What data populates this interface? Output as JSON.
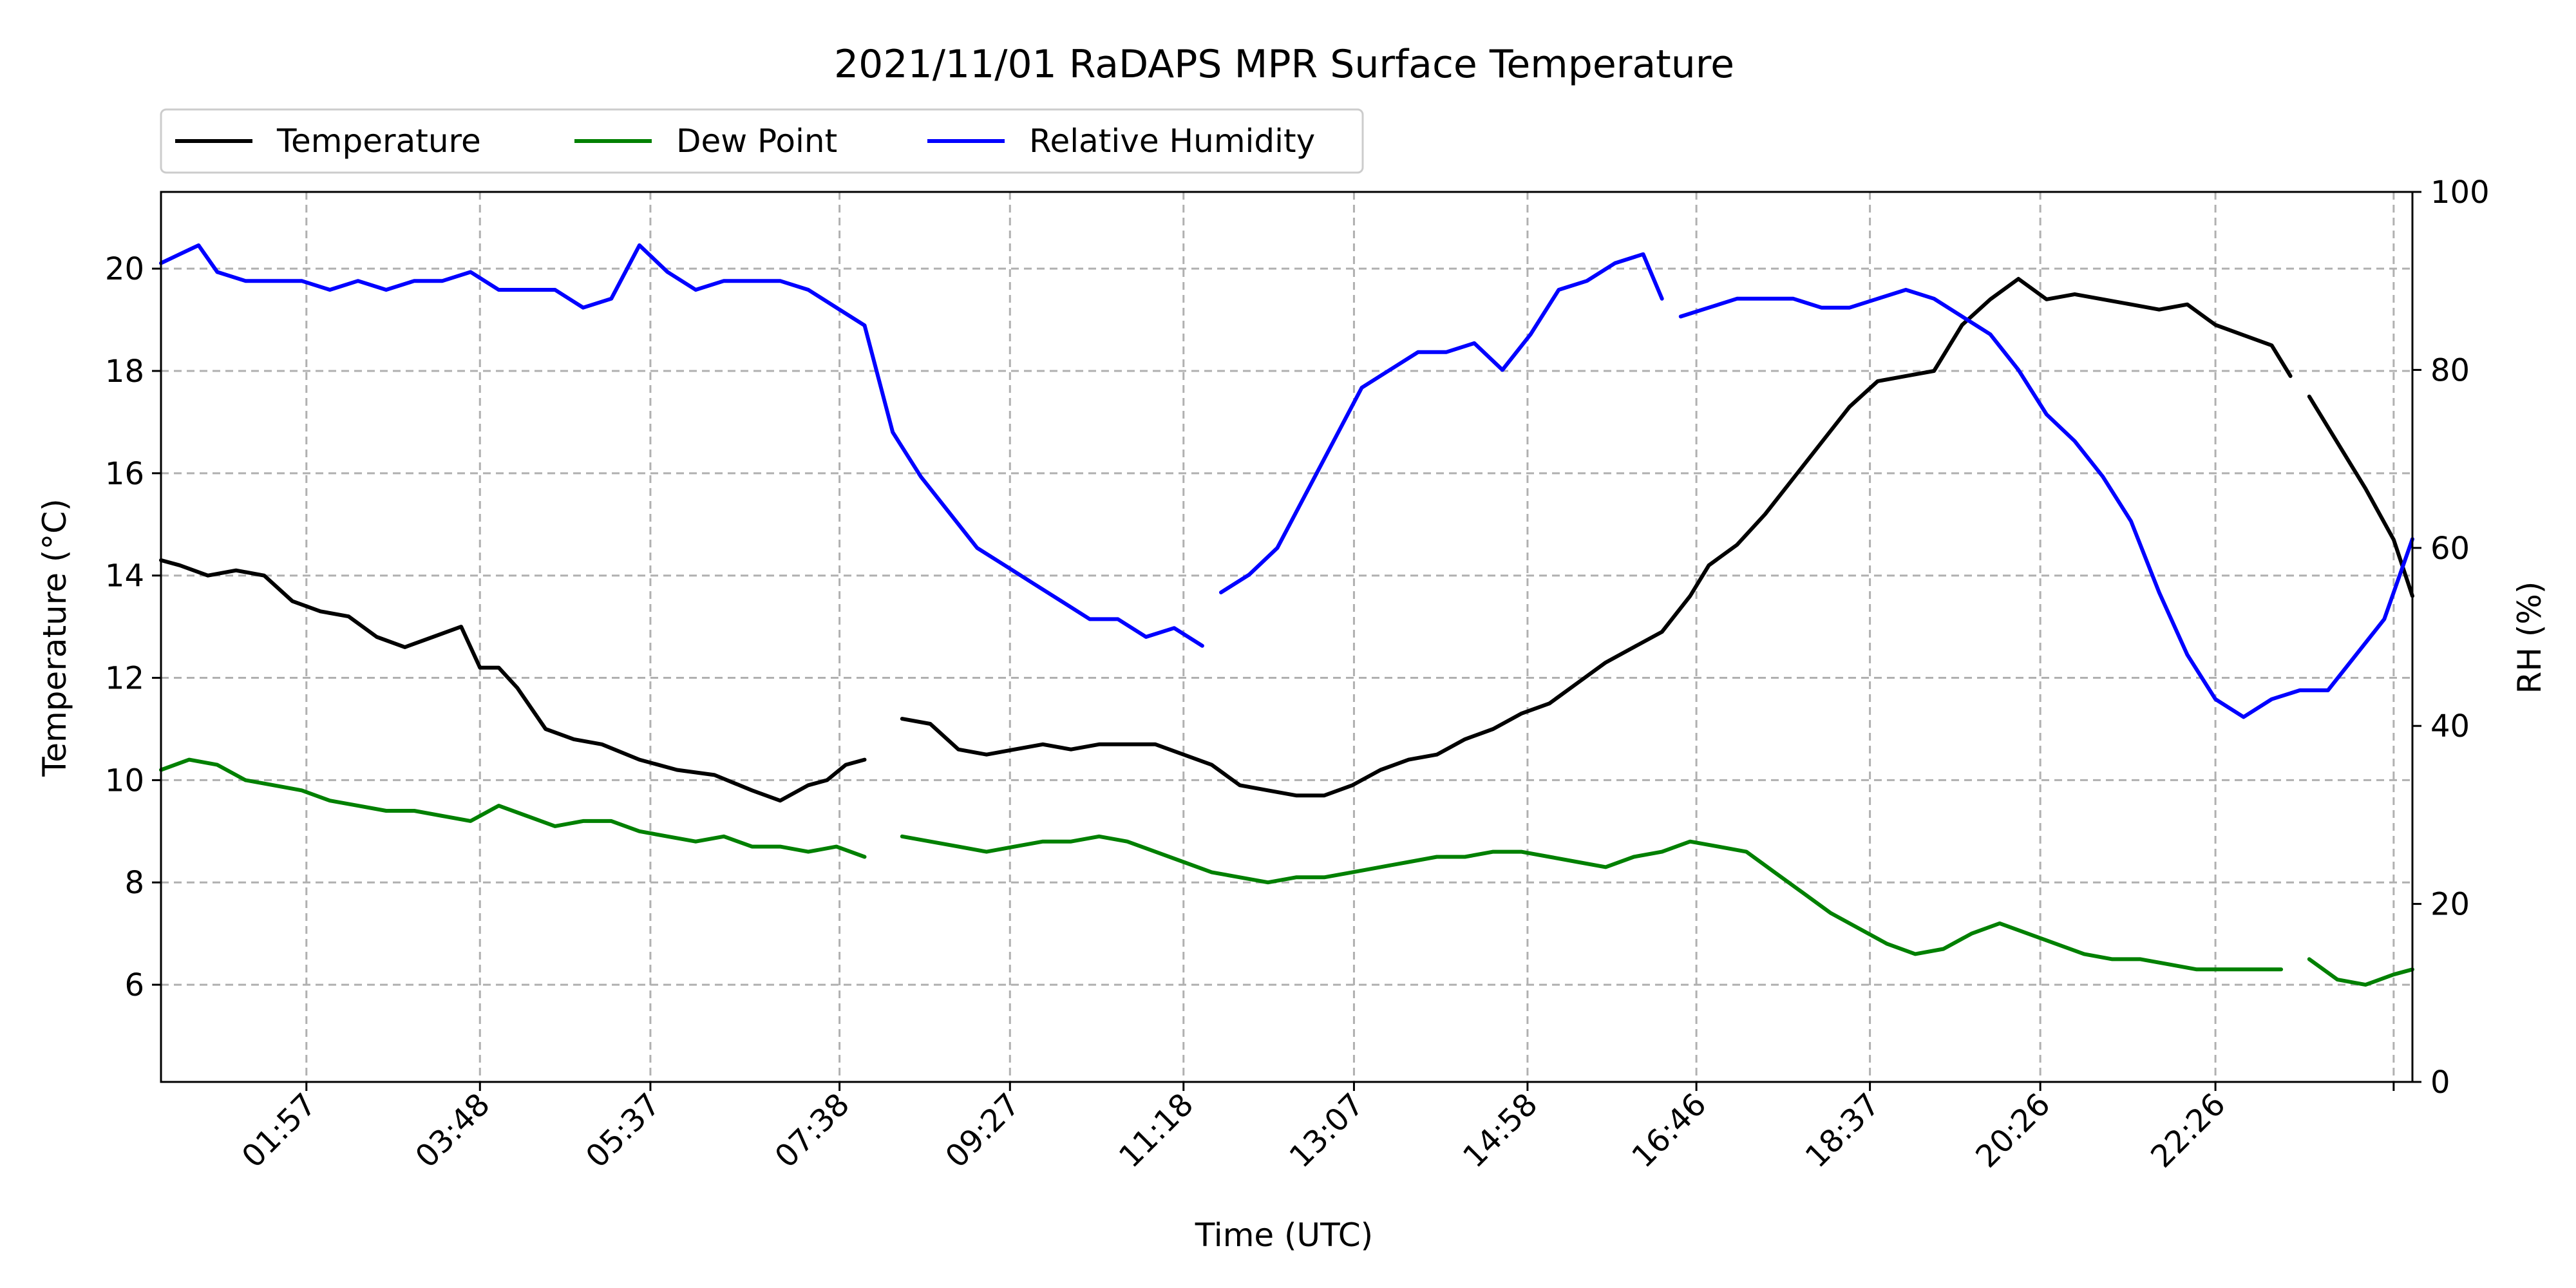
{
  "chart_data": {
    "type": "line",
    "title": "2021/11/01 RaDAPS MPR Surface Temperature",
    "xlabel": "Time (UTC)",
    "ylabel_left": "Temperature ($^\\circ$C)",
    "ylabel_left_display": "Temperature (°C)",
    "ylabel_right": "RH (%)",
    "xlim_hours": [
      0.4,
      24.4
    ],
    "ylim_left": [
      4.1,
      21.5
    ],
    "ylim_right": [
      0,
      100
    ],
    "yticks_left": [
      6,
      8,
      10,
      12,
      14,
      16,
      18,
      20
    ],
    "yticks_right": [
      0,
      20,
      40,
      60,
      80,
      100
    ],
    "xticks": [
      {
        "label": "01:57",
        "hour": 1.95
      },
      {
        "label": "03:48",
        "hour": 3.8
      },
      {
        "label": "05:37",
        "hour": 5.617
      },
      {
        "label": "07:38",
        "hour": 7.633
      },
      {
        "label": "09:27",
        "hour": 9.45
      },
      {
        "label": "11:18",
        "hour": 11.3
      },
      {
        "label": "13:07",
        "hour": 13.117
      },
      {
        "label": "14:58",
        "hour": 14.967
      },
      {
        "label": "16:46",
        "hour": 16.767
      },
      {
        "label": "18:37",
        "hour": 18.617
      },
      {
        "label": "20:26",
        "hour": 20.433
      },
      {
        "label": "22:26",
        "hour": 22.3
      },
      {
        "label": "",
        "hour": 24.2
      }
    ],
    "grid": true,
    "legend_position": "top-left (above plot)",
    "series": [
      {
        "name": "Temperature",
        "color": "#000000",
        "axis": "left",
        "segments": [
          {
            "x": [
              0.4,
              0.6,
              0.9,
              1.2,
              1.5,
              1.8,
              2.1,
              2.4,
              2.7,
              3.0,
              3.3,
              3.6,
              3.8,
              4.0,
              4.2,
              4.5,
              4.8,
              5.1,
              5.5,
              5.9,
              6.3,
              6.7,
              7.0,
              7.3,
              7.5,
              7.7,
              7.9
            ],
            "y": [
              14.3,
              14.2,
              14.0,
              14.1,
              14.0,
              13.5,
              13.3,
              13.2,
              12.8,
              12.6,
              12.8,
              13.0,
              12.2,
              12.2,
              11.8,
              11.0,
              10.8,
              10.7,
              10.4,
              10.2,
              10.1,
              9.8,
              9.6,
              9.9,
              10.0,
              10.3,
              10.4
            ]
          },
          {
            "x": [
              8.3,
              8.6,
              8.9,
              9.2,
              9.5,
              9.8,
              10.1,
              10.4,
              10.7,
              11.0,
              11.3,
              11.6,
              11.9,
              12.2,
              12.5,
              12.8,
              13.1,
              13.4,
              13.7,
              14.0,
              14.3,
              14.6,
              14.9,
              15.2,
              15.5,
              15.8,
              16.1,
              16.4,
              16.7,
              16.9,
              17.2,
              17.5,
              17.8,
              18.1,
              18.4,
              18.7,
              19.0,
              19.3,
              19.6,
              19.9,
              20.2,
              20.5,
              20.8,
              21.1,
              21.4,
              21.7,
              22.0,
              22.3,
              22.6,
              22.9,
              23.1
            ],
            "y": [
              11.2,
              11.1,
              10.6,
              10.5,
              10.6,
              10.7,
              10.6,
              10.7,
              10.7,
              10.7,
              10.5,
              10.3,
              9.9,
              9.8,
              9.7,
              9.7,
              9.9,
              10.2,
              10.4,
              10.5,
              10.8,
              11.0,
              11.3,
              11.5,
              11.9,
              12.3,
              12.6,
              12.9,
              13.6,
              14.2,
              14.6,
              15.2,
              15.9,
              16.6,
              17.3,
              17.8,
              17.9,
              18.0,
              18.9,
              19.4,
              19.8,
              19.4,
              19.5,
              19.4,
              19.3,
              19.2,
              19.3,
              18.9,
              18.7,
              18.5,
              17.9
            ]
          },
          {
            "x": [
              23.3,
              23.6,
              23.9,
              24.2,
              24.4
            ],
            "y": [
              17.5,
              16.6,
              15.7,
              14.7,
              13.6
            ]
          }
        ]
      },
      {
        "name": "Dew Point",
        "color": "#008000",
        "axis": "left",
        "segments": [
          {
            "x": [
              0.4,
              0.7,
              1.0,
              1.3,
              1.6,
              1.9,
              2.2,
              2.5,
              2.8,
              3.1,
              3.4,
              3.7,
              4.0,
              4.3,
              4.6,
              4.9,
              5.2,
              5.5,
              5.8,
              6.1,
              6.4,
              6.7,
              7.0,
              7.3,
              7.6,
              7.9
            ],
            "y": [
              10.2,
              10.4,
              10.3,
              10.0,
              9.9,
              9.8,
              9.6,
              9.5,
              9.4,
              9.4,
              9.3,
              9.2,
              9.5,
              9.3,
              9.1,
              9.2,
              9.2,
              9.0,
              8.9,
              8.8,
              8.9,
              8.7,
              8.7,
              8.6,
              8.7,
              8.5
            ]
          },
          {
            "x": [
              8.3,
              8.6,
              8.9,
              9.2,
              9.5,
              9.8,
              10.1,
              10.4,
              10.7,
              11.0,
              11.3,
              11.6,
              11.9,
              12.2,
              12.5,
              12.8,
              13.1,
              13.4,
              13.7,
              14.0,
              14.3,
              14.6,
              14.9,
              15.2,
              15.5,
              15.8,
              16.1,
              16.4,
              16.7,
              17.0,
              17.3,
              17.6,
              17.9,
              18.2,
              18.5,
              18.8,
              19.1,
              19.4,
              19.7,
              20.0,
              20.3,
              20.6,
              20.9,
              21.2,
              21.5,
              21.8,
              22.1,
              22.4,
              22.7,
              23.0
            ],
            "y": [
              8.9,
              8.8,
              8.7,
              8.6,
              8.7,
              8.8,
              8.8,
              8.9,
              8.8,
              8.6,
              8.4,
              8.2,
              8.1,
              8.0,
              8.1,
              8.1,
              8.2,
              8.3,
              8.4,
              8.5,
              8.5,
              8.6,
              8.6,
              8.5,
              8.4,
              8.3,
              8.5,
              8.6,
              8.8,
              8.7,
              8.6,
              8.2,
              7.8,
              7.4,
              7.1,
              6.8,
              6.6,
              6.7,
              7.0,
              7.2,
              7.0,
              6.8,
              6.6,
              6.5,
              6.5,
              6.4,
              6.3,
              6.3,
              6.3,
              6.3
            ]
          },
          {
            "x": [
              23.3,
              23.6,
              23.9,
              24.2,
              24.4
            ],
            "y": [
              6.5,
              6.1,
              6.0,
              6.2,
              6.3
            ]
          }
        ]
      },
      {
        "name": "Relative Humidity",
        "color": "#0000ff",
        "axis": "right",
        "segments": [
          {
            "x": [
              0.4,
              0.6,
              0.8,
              1.0,
              1.3,
              1.6,
              1.9,
              2.2,
              2.5,
              2.8,
              3.1,
              3.4,
              3.7,
              4.0,
              4.3,
              4.6,
              4.9,
              5.2,
              5.5,
              5.8,
              6.1,
              6.4,
              6.7,
              7.0,
              7.3,
              7.6,
              7.9,
              8.2,
              8.5,
              8.8,
              9.1,
              9.4,
              9.7,
              10.0,
              10.3,
              10.6,
              10.9,
              11.2,
              11.5
            ],
            "y": [
              92,
              93,
              94,
              91,
              90,
              90,
              90,
              89,
              90,
              89,
              90,
              90,
              91,
              89,
              89,
              89,
              87,
              88,
              94,
              91,
              89,
              90,
              90,
              90,
              89,
              87,
              85,
              73,
              68,
              64,
              60,
              58,
              56,
              54,
              52,
              52,
              50,
              51,
              49
            ]
          },
          {
            "x": [
              11.7,
              12.0,
              12.3,
              12.6,
              12.9,
              13.2,
              13.5,
              13.8,
              14.1,
              14.4,
              14.7,
              15.0,
              15.3,
              15.6,
              15.9,
              16.2,
              16.4
            ],
            "y": [
              55,
              57,
              60,
              66,
              72,
              78,
              80,
              82,
              82,
              83,
              80,
              84,
              89,
              90,
              92,
              93,
              88
            ]
          },
          {
            "x": [
              16.6,
              16.9,
              17.2,
              17.5,
              17.8,
              18.1,
              18.4,
              18.7,
              19.0,
              19.3,
              19.6,
              19.9,
              20.2,
              20.5,
              20.8,
              21.1,
              21.4,
              21.7,
              22.0,
              22.3,
              22.6,
              22.9,
              23.2,
              23.5,
              23.8,
              24.1,
              24.4
            ],
            "y": [
              86,
              87,
              88,
              88,
              88,
              87,
              87,
              88,
              89,
              88,
              86,
              84,
              80,
              75,
              72,
              68,
              63,
              55,
              48,
              43,
              41,
              43,
              44,
              44,
              48,
              52,
              61
            ]
          }
        ]
      }
    ]
  }
}
